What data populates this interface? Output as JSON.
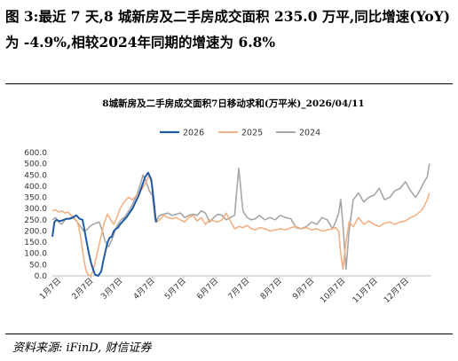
{
  "header": {
    "caption": "图 3:最近 7 天,8 城新房及二手房成交面积 235.0 万平,同比增速(YoY)为 -4.9%,相较2024年同期的增速为 6.8%"
  },
  "source": "资料来源: iFinD, 财信证券",
  "colors": {
    "s2026": "#1f5aa6",
    "s2025": "#f4b183",
    "s2024": "#a6a6a6"
  },
  "chart_data": {
    "type": "line",
    "title": "8城新房及二手房成交面积7日移动求和(万平米)_2026/04/11",
    "x_tick_labels": [
      "1月7日",
      "2月7日",
      "3月7日",
      "4月7日",
      "5月7日",
      "6月7日",
      "7月7日",
      "8月7日",
      "9月7日",
      "10月7日",
      "11月7日",
      "12月7日"
    ],
    "x_tick_days": [
      7,
      38,
      66,
      97,
      127,
      158,
      188,
      219,
      250,
      280,
      311,
      341
    ],
    "y_tick_labels": [
      "0.0",
      "50.0",
      "100.0",
      "150.0",
      "200.0",
      "250.0",
      "300.0",
      "350.0",
      "400.0",
      "450.0",
      "500.0",
      "600.0"
    ],
    "ylim": [
      0,
      600
    ],
    "legend_position": "top-center",
    "series": [
      {
        "name": "2026",
        "color": "#1f5aa6",
        "x": [
          1,
          3,
          5,
          7,
          9,
          12,
          15,
          18,
          21,
          24,
          27,
          30,
          32,
          34,
          36,
          38,
          40,
          42,
          45,
          48,
          50,
          52,
          54,
          56,
          58,
          60,
          62,
          64,
          66,
          69,
          72,
          75,
          78,
          81,
          84,
          87,
          90,
          93,
          96,
          98,
          100,
          101
        ],
        "values": [
          175,
          240,
          250,
          245,
          245,
          250,
          255,
          255,
          262,
          270,
          255,
          250,
          200,
          150,
          100,
          60,
          30,
          5,
          0,
          20,
          70,
          110,
          150,
          170,
          175,
          200,
          210,
          215,
          230,
          245,
          260,
          280,
          300,
          330,
          360,
          400,
          440,
          460,
          430,
          350,
          260,
          240
        ]
      },
      {
        "name": "2025",
        "color": "#f4b183",
        "x": [
          1,
          4,
          7,
          10,
          13,
          16,
          19,
          22,
          25,
          28,
          31,
          33,
          35,
          37,
          39,
          41,
          43,
          45,
          48,
          51,
          54,
          57,
          60,
          63,
          66,
          70,
          74,
          78,
          82,
          86,
          90,
          94,
          97,
          99,
          101,
          104,
          108,
          112,
          116,
          120,
          124,
          128,
          132,
          136,
          140,
          144,
          148,
          152,
          156,
          160,
          164,
          168,
          172,
          176,
          180,
          184,
          188,
          192,
          196,
          200,
          205,
          210,
          215,
          220,
          225,
          230,
          235,
          240,
          245,
          250,
          255,
          260,
          265,
          270,
          273,
          276,
          278,
          280,
          283,
          286,
          290,
          295,
          300,
          305,
          310,
          315,
          320,
          325,
          330,
          335,
          340,
          345,
          350,
          355,
          358,
          361,
          363
        ],
        "values": [
          290,
          295,
          285,
          290,
          280,
          285,
          270,
          260,
          240,
          180,
          80,
          30,
          5,
          0,
          10,
          40,
          80,
          120,
          180,
          240,
          275,
          250,
          230,
          260,
          300,
          330,
          350,
          340,
          360,
          380,
          410,
          450,
          400,
          280,
          240,
          250,
          270,
          260,
          255,
          260,
          250,
          240,
          260,
          270,
          245,
          260,
          230,
          250,
          245,
          240,
          250,
          280,
          245,
          210,
          220,
          215,
          225,
          210,
          205,
          215,
          210,
          200,
          205,
          210,
          205,
          215,
          220,
          210,
          215,
          205,
          210,
          200,
          205,
          210,
          215,
          200,
          100,
          30,
          150,
          240,
          220,
          260,
          230,
          245,
          230,
          220,
          235,
          240,
          230,
          240,
          245,
          260,
          270,
          290,
          310,
          340,
          370
        ]
      },
      {
        "name": "2024",
        "color": "#a6a6a6",
        "x": [
          1,
          4,
          7,
          10,
          13,
          16,
          19,
          22,
          25,
          28,
          31,
          34,
          37,
          40,
          43,
          46,
          49,
          52,
          55,
          58,
          61,
          64,
          67,
          70,
          73,
          76,
          79,
          82,
          85,
          88,
          91,
          94,
          97,
          100,
          104,
          108,
          112,
          116,
          120,
          124,
          128,
          132,
          136,
          140,
          144,
          148,
          152,
          156,
          160,
          164,
          168,
          172,
          176,
          180,
          184,
          188,
          192,
          196,
          200,
          205,
          210,
          215,
          220,
          225,
          230,
          235,
          240,
          245,
          250,
          255,
          260,
          265,
          270,
          273,
          276,
          278,
          280,
          283,
          286,
          290,
          295,
          300,
          305,
          310,
          315,
          320,
          325,
          330,
          335,
          340,
          345,
          350,
          355,
          358,
          361,
          363
        ],
        "values": [
          250,
          260,
          240,
          230,
          250,
          255,
          260,
          255,
          240,
          220,
          200,
          205,
          220,
          230,
          235,
          240,
          200,
          150,
          130,
          160,
          200,
          230,
          250,
          260,
          280,
          300,
          330,
          360,
          400,
          450,
          420,
          380,
          360,
          240,
          270,
          275,
          280,
          270,
          275,
          280,
          260,
          270,
          275,
          270,
          290,
          280,
          240,
          260,
          275,
          270,
          250,
          260,
          270,
          480,
          290,
          260,
          250,
          255,
          270,
          250,
          260,
          250,
          270,
          260,
          255,
          215,
          210,
          220,
          240,
          230,
          260,
          250,
          210,
          240,
          280,
          340,
          230,
          30,
          200,
          340,
          370,
          330,
          350,
          360,
          390,
          340,
          350,
          380,
          390,
          420,
          380,
          350,
          390,
          420,
          440,
          500
        ]
      }
    ]
  }
}
